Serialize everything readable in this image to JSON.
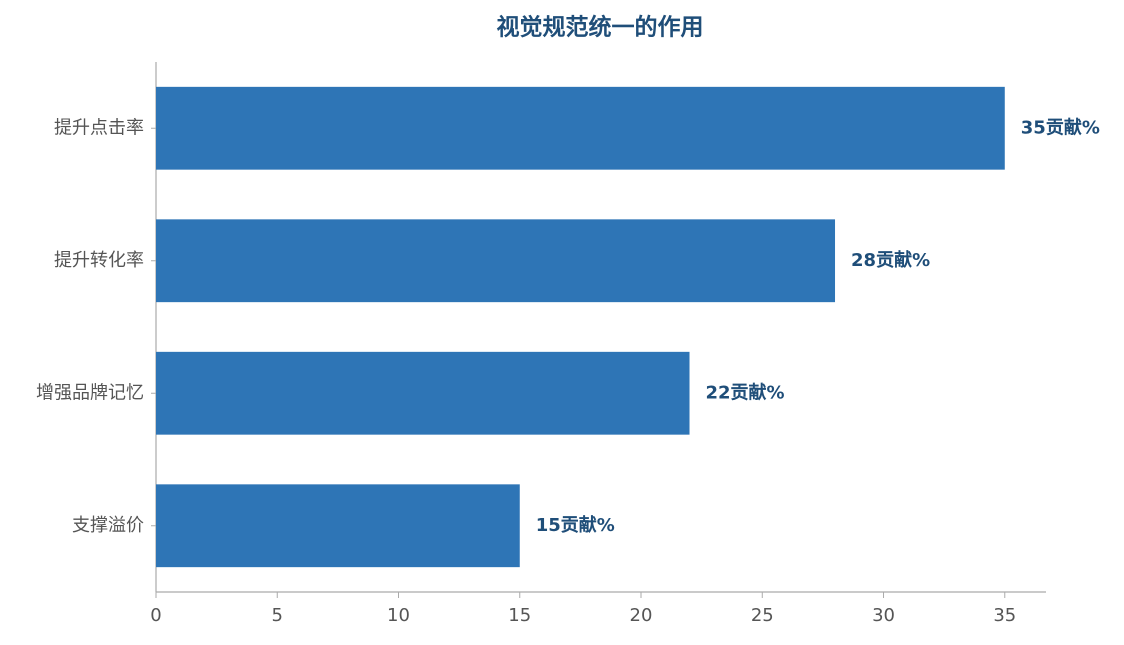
{
  "chart_data": {
    "type": "bar",
    "orientation": "horizontal",
    "title": "视觉规范统一的作用",
    "categories": [
      "提升点击率",
      "提升转化率",
      "增强品牌记忆",
      "支撑溢价"
    ],
    "values": [
      35,
      28,
      22,
      15
    ],
    "value_labels": [
      "35贡献%",
      "28贡献%",
      "22贡献%",
      "15贡献%"
    ],
    "color": "#2e75b6",
    "xlim": [
      0,
      36.7
    ],
    "xticks": [
      0,
      5,
      10,
      15,
      20,
      25,
      30,
      35
    ],
    "grid": false
  }
}
